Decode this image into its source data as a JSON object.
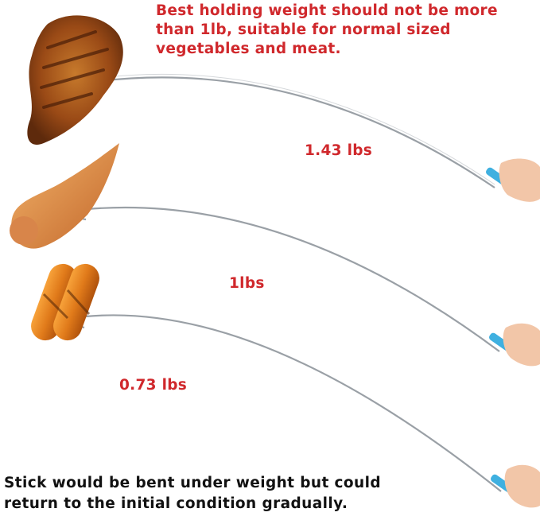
{
  "headline": {
    "line1": "Best holding weight should not be more",
    "line2": "than 1lb, suitable for normal sized",
    "line3": "vegetables and meat."
  },
  "weights": [
    {
      "label": "1.43 lbs",
      "food": "steak"
    },
    {
      "label": "1lbs",
      "food": "chicken-wing"
    },
    {
      "label": "0.73 lbs",
      "food": "sausages"
    }
  ],
  "footnote": {
    "line1": "Stick would be bent under weight but could",
    "line2": "return to the initial condition gradually."
  },
  "colors": {
    "text_red": "#d0282c",
    "handle_blue": "#3fb0e0",
    "stick": "#9aa0a6"
  }
}
